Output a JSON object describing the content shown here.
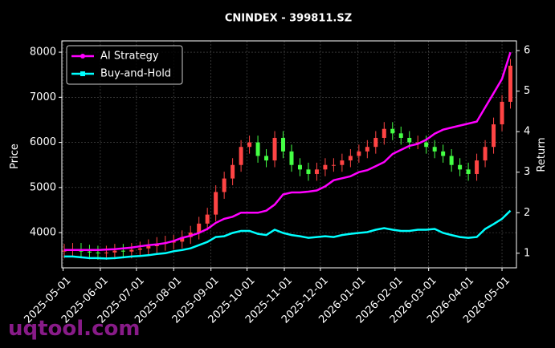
{
  "chart_data": {
    "type": "candlestick",
    "title": "CNINDEX - 399811.SZ",
    "ylabel": "Price",
    "y2label": "Return",
    "watermark": "uqtool.com",
    "up_color": "#ff4444",
    "down_color": "#44ff44",
    "grid": true,
    "legend": "upper left",
    "xlim": [
      "2025-04-30",
      "2026-05-13"
    ],
    "xticks": [
      "2025-05-01",
      "2025-06-01",
      "2025-07-01",
      "2025-08-01",
      "2025-09-01",
      "2025-10-01",
      "2025-11-01",
      "2025-12-01",
      "2026-01-01",
      "2026-02-01",
      "2026-03-01",
      "2026-04-01",
      "2026-05-01"
    ],
    "ylim": [
      3220,
      8250
    ],
    "yticks": [
      4000,
      5000,
      6000,
      7000,
      8000
    ],
    "y2lim": [
      0.64,
      6.24
    ],
    "y2ticks": [
      1,
      2,
      3,
      4,
      5,
      6
    ],
    "x": [
      "2025-05-02",
      "2025-05-09",
      "2025-05-16",
      "2025-05-23",
      "2025-05-30",
      "2025-06-06",
      "2025-06-13",
      "2025-06-20",
      "2025-06-27",
      "2025-07-04",
      "2025-07-11",
      "2025-07-18",
      "2025-07-25",
      "2025-08-01",
      "2025-08-08",
      "2025-08-15",
      "2025-08-22",
      "2025-08-29",
      "2025-09-05",
      "2025-09-12",
      "2025-09-19",
      "2025-09-26",
      "2025-10-03",
      "2025-10-10",
      "2025-10-17",
      "2025-10-24",
      "2025-10-31",
      "2025-11-07",
      "2025-11-14",
      "2025-11-21",
      "2025-11-28",
      "2025-12-05",
      "2025-12-12",
      "2025-12-19",
      "2025-12-26",
      "2026-01-02",
      "2026-01-09",
      "2026-01-16",
      "2026-01-23",
      "2026-01-30",
      "2026-02-06",
      "2026-02-13",
      "2026-02-20",
      "2026-02-27",
      "2026-03-06",
      "2026-03-13",
      "2026-03-20",
      "2026-03-27",
      "2026-04-03",
      "2026-04-10",
      "2026-04-17",
      "2026-04-24",
      "2026-05-01",
      "2026-05-08"
    ],
    "open": [
      3580,
      3600,
      3620,
      3580,
      3560,
      3550,
      3560,
      3600,
      3580,
      3620,
      3650,
      3700,
      3750,
      3780,
      3800,
      3900,
      4000,
      4200,
      4400,
      4900,
      5200,
      5500,
      5900,
      6000,
      5700,
      5600,
      6100,
      5800,
      5500,
      5400,
      5300,
      5400,
      5500,
      5500,
      5600,
      5700,
      5800,
      5900,
      6100,
      6300,
      6200,
      6100,
      6000,
      6000,
      5900,
      5800,
      5700,
      5500,
      5400,
      5300,
      5600,
      5900,
      6400,
      6900
    ],
    "high": [
      3750,
      3770,
      3770,
      3730,
      3710,
      3710,
      3750,
      3750,
      3770,
      3800,
      3850,
      3900,
      3930,
      3950,
      4050,
      4150,
      4350,
      4550,
      5050,
      5350,
      5650,
      6050,
      6150,
      6150,
      5850,
      6250,
      6250,
      5950,
      5650,
      5550,
      5550,
      5650,
      5650,
      5750,
      5850,
      5950,
      6050,
      6250,
      6450,
      6450,
      6350,
      6250,
      6150,
      6150,
      6050,
      5950,
      5850,
      5650,
      5550,
      5750,
      6050,
      6550,
      7050,
      7850
    ],
    "low": [
      3430,
      3450,
      3430,
      3410,
      3400,
      3400,
      3410,
      3430,
      3430,
      3470,
      3500,
      3550,
      3600,
      3630,
      3650,
      3750,
      3850,
      4050,
      4250,
      4750,
      5050,
      5350,
      5750,
      5550,
      5450,
      5450,
      5650,
      5350,
      5250,
      5150,
      5150,
      5250,
      5350,
      5350,
      5450,
      5550,
      5650,
      5750,
      5950,
      6050,
      5950,
      5850,
      5850,
      5750,
      5650,
      5550,
      5350,
      5250,
      5150,
      5150,
      5450,
      5750,
      6250,
      6750
    ],
    "close": [
      3600,
      3620,
      3580,
      3560,
      3550,
      3560,
      3600,
      3580,
      3620,
      3650,
      3700,
      3750,
      3780,
      3800,
      3900,
      4000,
      4200,
      4400,
      4900,
      5200,
      5500,
      5900,
      6000,
      5700,
      5600,
      6100,
      5800,
      5500,
      5400,
      5300,
      5400,
      5500,
      5500,
      5600,
      5700,
      5800,
      5900,
      6100,
      6300,
      6200,
      6100,
      6000,
      6000,
      5900,
      5800,
      5700,
      5500,
      5400,
      5300,
      5600,
      5900,
      6400,
      6900,
      7700
    ],
    "series": [
      {
        "name": "AI Strategy",
        "color": "#ff00ff",
        "axis": "y2",
        "values": [
          1.08,
          1.08,
          1.08,
          1.08,
          1.08,
          1.09,
          1.1,
          1.12,
          1.14,
          1.17,
          1.2,
          1.22,
          1.25,
          1.3,
          1.38,
          1.43,
          1.5,
          1.6,
          1.75,
          1.85,
          1.9,
          2.0,
          2.0,
          2.0,
          2.05,
          2.2,
          2.45,
          2.5,
          2.5,
          2.52,
          2.55,
          2.65,
          2.8,
          2.85,
          2.9,
          3.0,
          3.05,
          3.15,
          3.25,
          3.45,
          3.55,
          3.65,
          3.7,
          3.8,
          3.95,
          4.05,
          4.1,
          4.15,
          4.2,
          4.25,
          4.6,
          4.95,
          5.3,
          5.96
        ]
      },
      {
        "name": "Buy-and-Hold",
        "color": "#00ffff",
        "axis": "y2",
        "values": [
          0.92,
          0.92,
          0.9,
          0.88,
          0.88,
          0.87,
          0.88,
          0.9,
          0.92,
          0.93,
          0.95,
          0.98,
          1.0,
          1.05,
          1.08,
          1.12,
          1.2,
          1.28,
          1.4,
          1.42,
          1.5,
          1.55,
          1.55,
          1.48,
          1.45,
          1.58,
          1.5,
          1.45,
          1.42,
          1.38,
          1.4,
          1.42,
          1.4,
          1.45,
          1.48,
          1.5,
          1.52,
          1.58,
          1.62,
          1.58,
          1.55,
          1.55,
          1.58,
          1.58,
          1.6,
          1.5,
          1.45,
          1.4,
          1.38,
          1.4,
          1.6,
          1.72,
          1.85,
          2.05
        ]
      }
    ]
  }
}
